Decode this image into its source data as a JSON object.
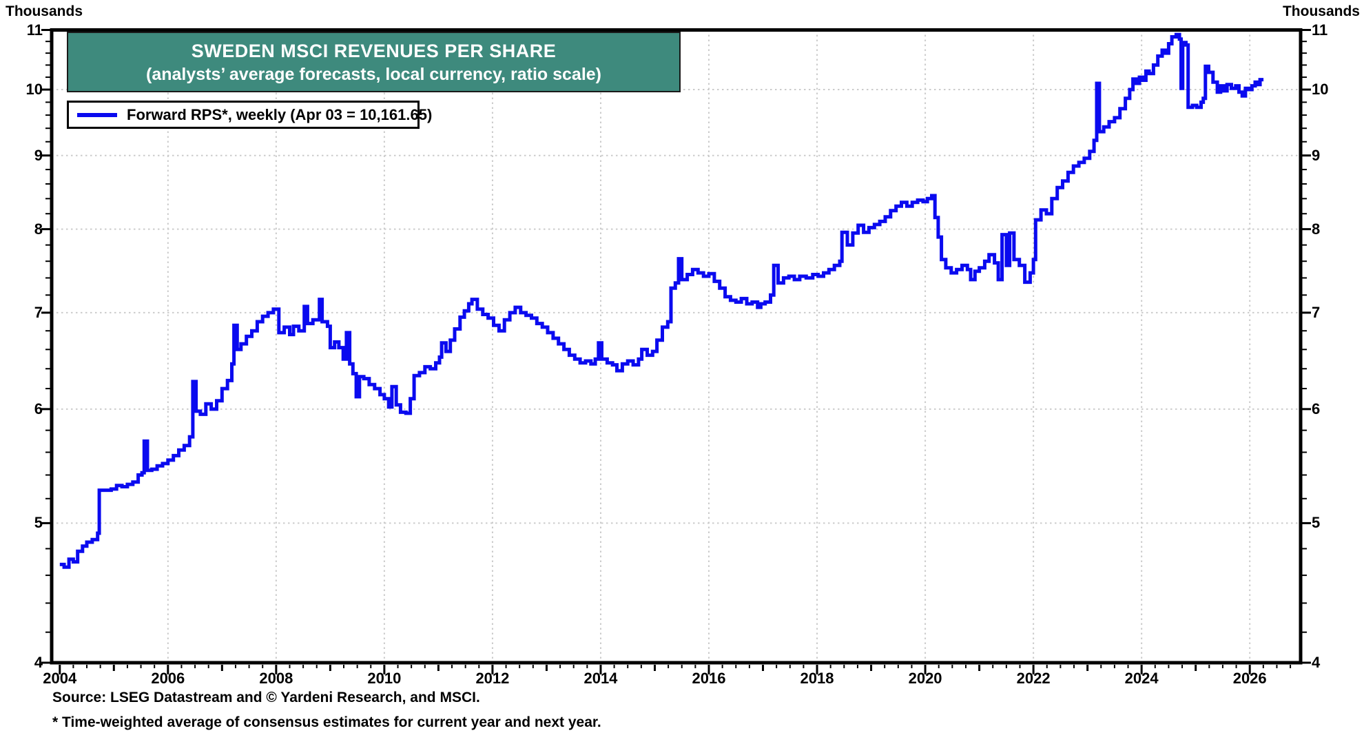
{
  "page_title": "Sweden MSCI Revenues Per Share chart",
  "units": {
    "left": "Thousands",
    "right": "Thousands"
  },
  "title": {
    "line1": "SWEDEN MSCI REVENUES PER SHARE",
    "line2": "(analysts’ average forecasts, local currency, ratio scale)",
    "bg_color": "#3E8A7D",
    "text_color": "#FFFFFF"
  },
  "legend": {
    "label": "Forward RPS*, weekly (Apr 03 = 10,161.65)",
    "line_color": "#0A0AEF"
  },
  "footer": {
    "source": "Source: LSEG Datastream and © Yardeni Research, and MSCI.",
    "footnote": "* Time-weighted average of consensus estimates for current year and next year."
  },
  "chart_data": {
    "type": "line",
    "title": "SWEDEN MSCI REVENUES PER SHARE",
    "subtitle": "(analysts’ average forecasts, local currency, ratio scale)",
    "series_name": "Forward RPS, weekly",
    "last_point_label": "Apr 03 = 10,161.65",
    "unit": "Thousands (local currency)",
    "scale": "log",
    "line_color": "#0A0AEF",
    "grid_color": "#CBCBCB",
    "grid_on": true,
    "legend_position": "top-left",
    "x_range": [
      2003.85,
      2026.94
    ],
    "y_range": [
      4,
      11
    ],
    "y_axis": {
      "ticks": [
        4,
        5,
        6,
        7,
        8,
        9,
        10,
        11
      ],
      "minor_step": 0.2,
      "gridlines": [
        5,
        6,
        7,
        8,
        9,
        10
      ]
    },
    "x_axis": {
      "tick_labels": [
        2004,
        2006,
        2008,
        2010,
        2012,
        2014,
        2016,
        2018,
        2020,
        2022,
        2024,
        2026
      ],
      "gridline_years": [
        2006,
        2008,
        2010,
        2012,
        2014,
        2016,
        2018,
        2020,
        2022,
        2024,
        2026
      ],
      "minor_step": 0.25
    },
    "points": [
      [
        2004.0,
        4.68
      ],
      [
        2004.08,
        4.66
      ],
      [
        2004.17,
        4.72
      ],
      [
        2004.25,
        4.7
      ],
      [
        2004.33,
        4.78
      ],
      [
        2004.42,
        4.82
      ],
      [
        2004.5,
        4.85
      ],
      [
        2004.6,
        4.87
      ],
      [
        2004.7,
        4.92
      ],
      [
        2004.73,
        5.27
      ],
      [
        2004.85,
        5.27
      ],
      [
        2004.95,
        5.28
      ],
      [
        2005.05,
        5.31
      ],
      [
        2005.15,
        5.3
      ],
      [
        2005.25,
        5.32
      ],
      [
        2005.35,
        5.34
      ],
      [
        2005.45,
        5.4
      ],
      [
        2005.52,
        5.42
      ],
      [
        2005.56,
        5.7
      ],
      [
        2005.62,
        5.44
      ],
      [
        2005.7,
        5.45
      ],
      [
        2005.8,
        5.48
      ],
      [
        2005.9,
        5.5
      ],
      [
        2006.0,
        5.53
      ],
      [
        2006.1,
        5.57
      ],
      [
        2006.2,
        5.62
      ],
      [
        2006.3,
        5.66
      ],
      [
        2006.4,
        5.74
      ],
      [
        2006.46,
        6.27
      ],
      [
        2006.52,
        5.98
      ],
      [
        2006.6,
        5.95
      ],
      [
        2006.7,
        6.05
      ],
      [
        2006.8,
        6.0
      ],
      [
        2006.9,
        6.08
      ],
      [
        2007.0,
        6.2
      ],
      [
        2007.1,
        6.28
      ],
      [
        2007.18,
        6.45
      ],
      [
        2007.22,
        6.86
      ],
      [
        2007.28,
        6.6
      ],
      [
        2007.35,
        6.66
      ],
      [
        2007.45,
        6.74
      ],
      [
        2007.55,
        6.8
      ],
      [
        2007.65,
        6.9
      ],
      [
        2007.75,
        6.96
      ],
      [
        2007.85,
        7.0
      ],
      [
        2007.95,
        7.04
      ],
      [
        2008.05,
        6.78
      ],
      [
        2008.15,
        6.84
      ],
      [
        2008.25,
        6.76
      ],
      [
        2008.32,
        6.85
      ],
      [
        2008.42,
        6.8
      ],
      [
        2008.52,
        7.07
      ],
      [
        2008.58,
        6.88
      ],
      [
        2008.68,
        6.92
      ],
      [
        2008.8,
        7.15
      ],
      [
        2008.85,
        6.9
      ],
      [
        2008.95,
        6.85
      ],
      [
        2009.0,
        6.62
      ],
      [
        2009.08,
        6.68
      ],
      [
        2009.16,
        6.62
      ],
      [
        2009.24,
        6.5
      ],
      [
        2009.3,
        6.78
      ],
      [
        2009.36,
        6.45
      ],
      [
        2009.42,
        6.35
      ],
      [
        2009.48,
        6.12
      ],
      [
        2009.54,
        6.32
      ],
      [
        2009.62,
        6.3
      ],
      [
        2009.72,
        6.24
      ],
      [
        2009.82,
        6.2
      ],
      [
        2009.92,
        6.14
      ],
      [
        2010.0,
        6.1
      ],
      [
        2010.08,
        6.02
      ],
      [
        2010.14,
        6.22
      ],
      [
        2010.22,
        6.04
      ],
      [
        2010.3,
        5.97
      ],
      [
        2010.4,
        5.96
      ],
      [
        2010.48,
        6.1
      ],
      [
        2010.55,
        6.33
      ],
      [
        2010.65,
        6.36
      ],
      [
        2010.75,
        6.42
      ],
      [
        2010.85,
        6.4
      ],
      [
        2010.95,
        6.46
      ],
      [
        2011.02,
        6.52
      ],
      [
        2011.06,
        6.67
      ],
      [
        2011.14,
        6.58
      ],
      [
        2011.22,
        6.7
      ],
      [
        2011.3,
        6.82
      ],
      [
        2011.4,
        6.95
      ],
      [
        2011.48,
        7.02
      ],
      [
        2011.56,
        7.1
      ],
      [
        2011.62,
        7.15
      ],
      [
        2011.72,
        7.04
      ],
      [
        2011.82,
        6.98
      ],
      [
        2011.92,
        6.94
      ],
      [
        2012.02,
        6.86
      ],
      [
        2012.12,
        6.8
      ],
      [
        2012.22,
        6.92
      ],
      [
        2012.32,
        7.0
      ],
      [
        2012.42,
        7.06
      ],
      [
        2012.52,
        7.0
      ],
      [
        2012.62,
        6.97
      ],
      [
        2012.72,
        6.94
      ],
      [
        2012.82,
        6.88
      ],
      [
        2012.92,
        6.84
      ],
      [
        2013.02,
        6.78
      ],
      [
        2013.12,
        6.72
      ],
      [
        2013.22,
        6.66
      ],
      [
        2013.32,
        6.6
      ],
      [
        2013.42,
        6.54
      ],
      [
        2013.52,
        6.5
      ],
      [
        2013.62,
        6.46
      ],
      [
        2013.72,
        6.48
      ],
      [
        2013.82,
        6.45
      ],
      [
        2013.9,
        6.5
      ],
      [
        2013.96,
        6.67
      ],
      [
        2014.02,
        6.5
      ],
      [
        2014.12,
        6.46
      ],
      [
        2014.22,
        6.44
      ],
      [
        2014.3,
        6.38
      ],
      [
        2014.4,
        6.45
      ],
      [
        2014.5,
        6.48
      ],
      [
        2014.6,
        6.44
      ],
      [
        2014.7,
        6.5
      ],
      [
        2014.76,
        6.6
      ],
      [
        2014.86,
        6.54
      ],
      [
        2014.96,
        6.58
      ],
      [
        2015.04,
        6.7
      ],
      [
        2015.14,
        6.84
      ],
      [
        2015.24,
        6.9
      ],
      [
        2015.3,
        7.28
      ],
      [
        2015.38,
        7.34
      ],
      [
        2015.44,
        7.63
      ],
      [
        2015.5,
        7.38
      ],
      [
        2015.6,
        7.44
      ],
      [
        2015.7,
        7.5
      ],
      [
        2015.8,
        7.46
      ],
      [
        2015.9,
        7.42
      ],
      [
        2016.0,
        7.45
      ],
      [
        2016.1,
        7.36
      ],
      [
        2016.2,
        7.28
      ],
      [
        2016.3,
        7.18
      ],
      [
        2016.4,
        7.14
      ],
      [
        2016.5,
        7.12
      ],
      [
        2016.6,
        7.16
      ],
      [
        2016.7,
        7.1
      ],
      [
        2016.8,
        7.12
      ],
      [
        2016.9,
        7.06
      ],
      [
        2016.96,
        7.1
      ],
      [
        2017.04,
        7.12
      ],
      [
        2017.14,
        7.2
      ],
      [
        2017.2,
        7.55
      ],
      [
        2017.28,
        7.34
      ],
      [
        2017.38,
        7.4
      ],
      [
        2017.48,
        7.42
      ],
      [
        2017.58,
        7.38
      ],
      [
        2017.68,
        7.42
      ],
      [
        2017.8,
        7.4
      ],
      [
        2017.92,
        7.44
      ],
      [
        2018.02,
        7.42
      ],
      [
        2018.12,
        7.46
      ],
      [
        2018.22,
        7.5
      ],
      [
        2018.32,
        7.55
      ],
      [
        2018.42,
        7.6
      ],
      [
        2018.46,
        7.96
      ],
      [
        2018.56,
        7.8
      ],
      [
        2018.66,
        7.95
      ],
      [
        2018.76,
        8.05
      ],
      [
        2018.86,
        7.96
      ],
      [
        2018.96,
        8.02
      ],
      [
        2019.06,
        8.06
      ],
      [
        2019.16,
        8.1
      ],
      [
        2019.26,
        8.16
      ],
      [
        2019.36,
        8.24
      ],
      [
        2019.46,
        8.3
      ],
      [
        2019.56,
        8.35
      ],
      [
        2019.66,
        8.3
      ],
      [
        2019.76,
        8.35
      ],
      [
        2019.86,
        8.38
      ],
      [
        2019.96,
        8.36
      ],
      [
        2020.04,
        8.4
      ],
      [
        2020.12,
        8.44
      ],
      [
        2020.18,
        8.15
      ],
      [
        2020.24,
        7.9
      ],
      [
        2020.3,
        7.62
      ],
      [
        2020.38,
        7.52
      ],
      [
        2020.48,
        7.46
      ],
      [
        2020.58,
        7.5
      ],
      [
        2020.68,
        7.55
      ],
      [
        2020.78,
        7.5
      ],
      [
        2020.84,
        7.38
      ],
      [
        2020.92,
        7.48
      ],
      [
        2021.0,
        7.52
      ],
      [
        2021.1,
        7.6
      ],
      [
        2021.18,
        7.68
      ],
      [
        2021.28,
        7.58
      ],
      [
        2021.35,
        7.38
      ],
      [
        2021.42,
        7.93
      ],
      [
        2021.5,
        7.55
      ],
      [
        2021.56,
        7.95
      ],
      [
        2021.64,
        7.62
      ],
      [
        2021.74,
        7.55
      ],
      [
        2021.84,
        7.35
      ],
      [
        2021.94,
        7.46
      ],
      [
        2022.0,
        7.62
      ],
      [
        2022.04,
        8.12
      ],
      [
        2022.14,
        8.25
      ],
      [
        2022.24,
        8.2
      ],
      [
        2022.34,
        8.4
      ],
      [
        2022.44,
        8.55
      ],
      [
        2022.54,
        8.64
      ],
      [
        2022.64,
        8.76
      ],
      [
        2022.74,
        8.85
      ],
      [
        2022.84,
        8.9
      ],
      [
        2022.94,
        8.96
      ],
      [
        2023.04,
        9.06
      ],
      [
        2023.12,
        9.22
      ],
      [
        2023.17,
        10.1
      ],
      [
        2023.22,
        9.35
      ],
      [
        2023.3,
        9.42
      ],
      [
        2023.4,
        9.5
      ],
      [
        2023.5,
        9.56
      ],
      [
        2023.6,
        9.7
      ],
      [
        2023.7,
        9.86
      ],
      [
        2023.78,
        10.0
      ],
      [
        2023.84,
        10.17
      ],
      [
        2023.9,
        10.1
      ],
      [
        2023.96,
        10.2
      ],
      [
        2024.02,
        10.15
      ],
      [
        2024.08,
        10.3
      ],
      [
        2024.14,
        10.26
      ],
      [
        2024.22,
        10.4
      ],
      [
        2024.3,
        10.55
      ],
      [
        2024.38,
        10.65
      ],
      [
        2024.44,
        10.6
      ],
      [
        2024.5,
        10.76
      ],
      [
        2024.56,
        10.88
      ],
      [
        2024.64,
        10.92
      ],
      [
        2024.7,
        10.84
      ],
      [
        2024.73,
        10.02
      ],
      [
        2024.76,
        10.78
      ],
      [
        2024.82,
        10.74
      ],
      [
        2024.86,
        9.72
      ],
      [
        2024.94,
        9.75
      ],
      [
        2025.02,
        9.72
      ],
      [
        2025.1,
        9.8
      ],
      [
        2025.14,
        9.86
      ],
      [
        2025.18,
        10.38
      ],
      [
        2025.24,
        10.28
      ],
      [
        2025.32,
        10.12
      ],
      [
        2025.4,
        9.96
      ],
      [
        2025.46,
        10.06
      ],
      [
        2025.52,
        9.98
      ],
      [
        2025.58,
        10.08
      ],
      [
        2025.66,
        10.02
      ],
      [
        2025.74,
        10.06
      ],
      [
        2025.8,
        9.96
      ],
      [
        2025.86,
        9.9
      ],
      [
        2025.92,
        10.02
      ],
      [
        2025.98,
        10.0
      ],
      [
        2026.04,
        10.06
      ],
      [
        2026.1,
        10.12
      ],
      [
        2026.14,
        10.08
      ],
      [
        2026.19,
        10.16
      ]
    ]
  }
}
